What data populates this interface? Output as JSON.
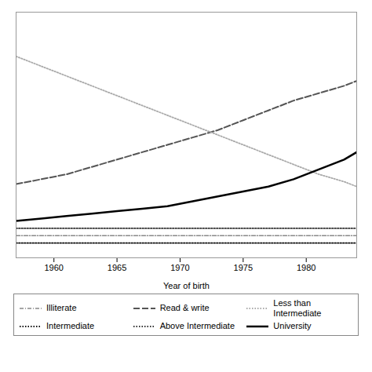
{
  "chart_data": {
    "type": "line",
    "xlabel": "Year of birth",
    "x": [
      1957,
      1959,
      1961,
      1963,
      1965,
      1967,
      1969,
      1971,
      1973,
      1975,
      1977,
      1979,
      1981,
      1983,
      1984
    ],
    "series": [
      {
        "name": "Illiterate",
        "color": "#888888",
        "line_style": "dashdot",
        "values": [
          0.09,
          0.09,
          0.09,
          0.09,
          0.09,
          0.09,
          0.09,
          0.09,
          0.09,
          0.09,
          0.09,
          0.09,
          0.09,
          0.09,
          0.09
        ]
      },
      {
        "name": "Read & write",
        "color": "#555555",
        "line_style": "dashed",
        "values": [
          0.3,
          0.32,
          0.34,
          0.37,
          0.4,
          0.43,
          0.46,
          0.49,
          0.52,
          0.56,
          0.6,
          0.64,
          0.67,
          0.7,
          0.72
        ]
      },
      {
        "name": "Less than\nIntermediate",
        "color": "#aaaaaa",
        "line_style": "dotted",
        "values": [
          0.82,
          0.78,
          0.74,
          0.7,
          0.66,
          0.62,
          0.58,
          0.54,
          0.5,
          0.46,
          0.42,
          0.38,
          0.34,
          0.31,
          0.29
        ]
      },
      {
        "name": "Intermediate",
        "color": "#111111",
        "line_style": "dotted",
        "values": [
          0.06,
          0.06,
          0.06,
          0.06,
          0.06,
          0.06,
          0.06,
          0.06,
          0.06,
          0.06,
          0.06,
          0.06,
          0.06,
          0.06,
          0.06
        ]
      },
      {
        "name": "Above Intermediate",
        "color": "#333333",
        "line_style": "dotted",
        "values": [
          0.12,
          0.12,
          0.12,
          0.12,
          0.12,
          0.12,
          0.12,
          0.12,
          0.12,
          0.12,
          0.12,
          0.12,
          0.12,
          0.12,
          0.12
        ]
      },
      {
        "name": "University",
        "color": "#000000",
        "line_style": "solid",
        "values": [
          0.15,
          0.16,
          0.17,
          0.18,
          0.19,
          0.2,
          0.21,
          0.23,
          0.25,
          0.27,
          0.29,
          0.32,
          0.36,
          0.4,
          0.43
        ]
      }
    ],
    "xlim": [
      1957,
      1984
    ],
    "xticks": [
      1960,
      1965,
      1970,
      1975,
      1980
    ],
    "ylim": [
      0.0,
      1.0
    ],
    "tick_labels": "x",
    "grid": false,
    "legend": "bottom"
  }
}
